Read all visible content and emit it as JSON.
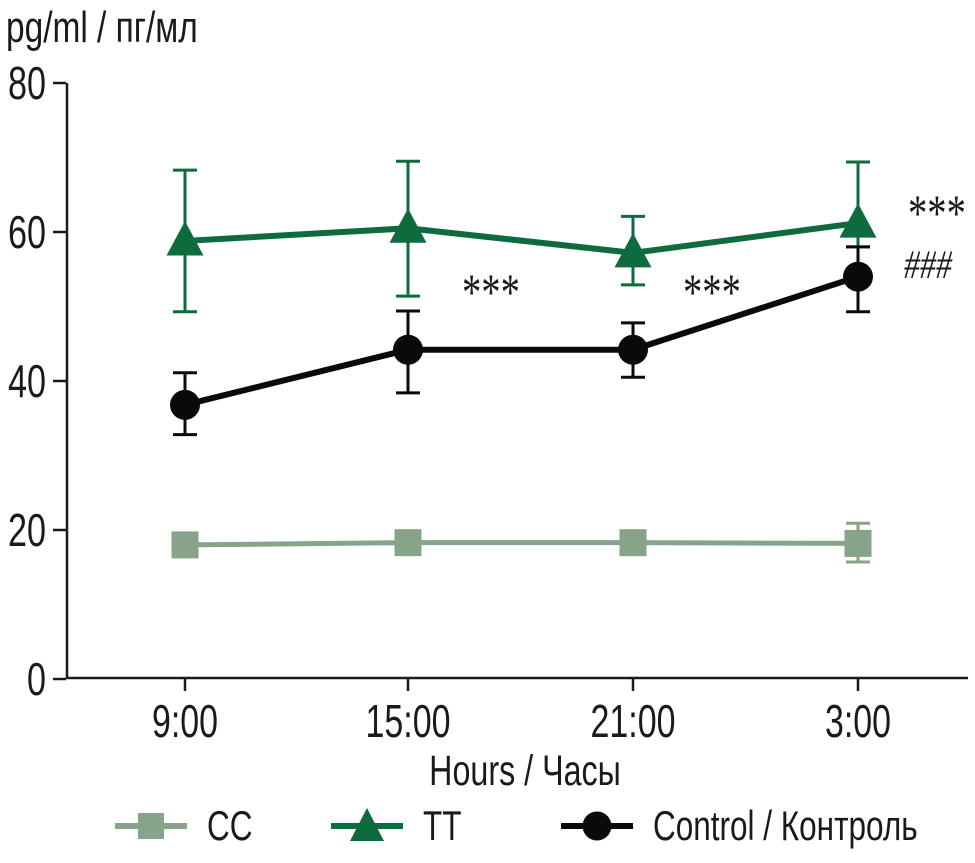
{
  "page": {
    "background": "#ffffff",
    "text_color": "#1a1a1a"
  },
  "chart_data": {
    "type": "line",
    "ylabel": "pg/ml / пг/мл",
    "xlabel": "Hours / Часы",
    "categories": [
      "9:00",
      "15:00",
      "21:00",
      "3:00"
    ],
    "ylim": [
      0,
      80
    ],
    "yticks": [
      0,
      20,
      40,
      60,
      80
    ],
    "grid": false,
    "legend_position": "bottom",
    "series": [
      {
        "name": "CC",
        "marker": "square",
        "color": "#87a389",
        "values": [
          18.0,
          18.3,
          18.3,
          18.2
        ],
        "err_up": [
          0,
          0,
          0,
          2.7
        ],
        "err_down": [
          0,
          0,
          0,
          2.5
        ]
      },
      {
        "name": "TT",
        "marker": "triangle",
        "color": "#0e6b3d",
        "values": [
          58.8,
          60.5,
          57.2,
          61.2
        ],
        "err_up": [
          9.5,
          9.0,
          4.9,
          8.2
        ],
        "err_down": [
          9.5,
          9.1,
          4.3,
          3.2
        ]
      },
      {
        "name": "Control / Контроль",
        "marker": "circle",
        "color": "#0a0a0a",
        "values": [
          36.8,
          44.2,
          44.2,
          54.0
        ],
        "err_up": [
          4.3,
          5.2,
          3.6,
          4.0
        ],
        "err_down": [
          4.0,
          5.8,
          3.7,
          4.7
        ]
      }
    ],
    "annotations": [
      {
        "text": "***",
        "cat_index": 1,
        "offset_x": 54,
        "value": 49.6,
        "size": 52,
        "italic": false
      },
      {
        "text": "***",
        "cat_index": 2,
        "offset_x": 50,
        "value": 49.6,
        "size": 52,
        "italic": false
      },
      {
        "text": "***",
        "cat_index": 3,
        "offset_x": 50,
        "value": 60.2,
        "size": 52,
        "italic": false
      },
      {
        "text": "###",
        "cat_index": 3,
        "offset_x": 46,
        "value": 53.8,
        "size": 40,
        "italic": true
      }
    ]
  }
}
